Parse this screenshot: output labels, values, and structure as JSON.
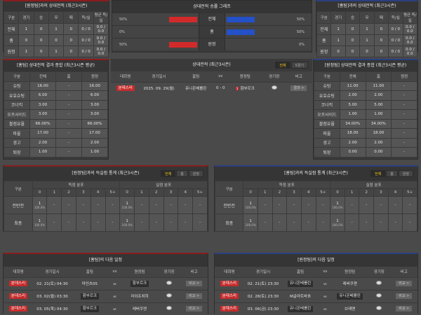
{
  "colors": {
    "home_accent": "#8a1d1d",
    "away_accent": "#2a3f80",
    "left_bar": "#d22a2a",
    "right_bar": "#2450c8",
    "tab_active": "#f2c521",
    "league_badge": "#c62b2b"
  },
  "h2h_left": {
    "title": "[원정팀]과의 상대전적 (최근3시즌)",
    "headers": [
      "구분",
      "경기",
      "승",
      "무",
      "패",
      "득/실",
      "평균 득/실"
    ],
    "rows": [
      [
        "전체",
        "1",
        "0",
        "1",
        "0",
        "0 / 0",
        "0.0 / 0.0"
      ],
      [
        "홈",
        "0",
        "0",
        "0",
        "0",
        "0 / 0",
        "0.0 / 0.0"
      ],
      [
        "원정",
        "1",
        "0",
        "1",
        "0",
        "0 / 0",
        "0.0 / 0.0"
      ]
    ]
  },
  "h2h_right": {
    "title": "[홈팀]과의 상대전적 (최근3시즌)",
    "headers": [
      "구분",
      "경기",
      "승",
      "무",
      "패",
      "득/실",
      "평균 득/실"
    ],
    "rows": [
      [
        "전체",
        "1",
        "0",
        "1",
        "0",
        "0 / 0",
        "0.0 / 0.0"
      ],
      [
        "홈",
        "1",
        "0",
        "1",
        "0",
        "0 / 0",
        "0.0 / 0.0"
      ],
      [
        "원정",
        "0",
        "0",
        "0",
        "0",
        "0 / 0",
        "0.0 / 0.0"
      ]
    ]
  },
  "graph": {
    "title": "상대전적 승률 그래프",
    "rows": [
      {
        "label": "전체",
        "left": 50,
        "right": 50,
        "left_text": "50%",
        "right_text": "50%"
      },
      {
        "label": "홈",
        "left": 0,
        "right": 50,
        "left_text": "0%",
        "right_text": "50%"
      },
      {
        "label": "원정",
        "left": 50,
        "right": 0,
        "left_text": "50%",
        "right_text": "0%"
      }
    ]
  },
  "summary_left": {
    "title": "[홈팀] 상대전적 결과 종합 (최근3시즌 평균)",
    "headers": [
      "구분",
      "전체",
      "홈",
      "원정"
    ],
    "rows": [
      [
        "슈팅",
        "16.00",
        "-",
        "16.00"
      ],
      [
        "유효슈팅",
        "6.00",
        "-",
        "6.00"
      ],
      [
        "코너킥",
        "3.00",
        "-",
        "3.00"
      ],
      [
        "오프사이드",
        "3.00",
        "-",
        "3.00"
      ],
      [
        "볼점유율",
        "66.00%",
        "-",
        "66.00%"
      ],
      [
        "파울",
        "17.00",
        "-",
        "17.00"
      ],
      [
        "경고",
        "2.00",
        "-",
        "2.00"
      ],
      [
        "퇴장",
        "1.00",
        "-",
        "1.00"
      ]
    ]
  },
  "summary_right": {
    "title": "[원정팀] 상대전적 결과 종합 (최근3시즌 평균)",
    "headers": [
      "구분",
      "전체",
      "홈",
      "원정"
    ],
    "rows": [
      [
        "슈팅",
        "11.00",
        "11.00",
        "-"
      ],
      [
        "유효슈팅",
        "2.00",
        "2.00",
        "-"
      ],
      [
        "코너킥",
        "5.00",
        "5.00",
        "-"
      ],
      [
        "오프사이드",
        "1.00",
        "1.00",
        "-"
      ],
      [
        "볼점유율",
        "34.00%",
        "34.00%",
        "-"
      ],
      [
        "파울",
        "18.00",
        "18.00",
        "-"
      ],
      [
        "경고",
        "2.00",
        "2.00",
        "-"
      ],
      [
        "퇴장",
        "0.00",
        "0.00",
        "-"
      ]
    ]
  },
  "recent": {
    "title": "상대전적 (최근3시즌)",
    "tabs": [
      "전체",
      "5경기"
    ],
    "headers": [
      "대회명",
      "경기일시",
      "홈팀",
      "vs",
      "원정팀",
      "경기장",
      "비고"
    ],
    "matches": [
      {
        "league": "분데스리",
        "date": "2025. 09. 29(월)",
        "home": "유니온베를린",
        "score": "0 - 0",
        "red_card": "1",
        "away": "함부르크",
        "note": "결과 >"
      }
    ]
  },
  "goals_left": {
    "title": "[원정팀]과의 득실점 통계 (최근3시즌)",
    "tabs": [
      "전체",
      "홈",
      "원정"
    ],
    "col_label": "구분",
    "groups": [
      "득점 분포",
      "실점 분포"
    ],
    "buckets": [
      "0",
      "1",
      "2",
      "3",
      "4",
      "5+"
    ],
    "rows": [
      {
        "label": "전반전",
        "scored": [
          [
            "1",
            "100.0%"
          ],
          [
            "-"
          ],
          [
            "-"
          ],
          [
            "-"
          ],
          [
            "-"
          ],
          [
            "-"
          ]
        ],
        "conceded": [
          [
            "1",
            "100.0%"
          ],
          [
            "-"
          ],
          [
            "-"
          ],
          [
            "-"
          ],
          [
            "-"
          ],
          [
            "-"
          ]
        ]
      },
      {
        "label": "최종",
        "scored": [
          [
            "1",
            "100.0%"
          ],
          [
            "-"
          ],
          [
            "-"
          ],
          [
            "-"
          ],
          [
            "-"
          ],
          [
            "-"
          ]
        ],
        "conceded": [
          [
            "1",
            "100.0%"
          ],
          [
            "-"
          ],
          [
            "-"
          ],
          [
            "-"
          ],
          [
            "-"
          ],
          [
            "-"
          ]
        ]
      }
    ]
  },
  "goals_right": {
    "title": "[홈팀]과의 득실점 통계 (최근3시즌)",
    "tabs": [
      "전체",
      "홈",
      "원정"
    ],
    "col_label": "구분",
    "groups": [
      "득점 분포",
      "실점 분포"
    ],
    "buckets": [
      "0",
      "1",
      "2",
      "3",
      "4",
      "5+"
    ],
    "rows": [
      {
        "label": "전반전",
        "scored": [
          [
            "1",
            "100.0%"
          ],
          [
            "-"
          ],
          [
            "-"
          ],
          [
            "-"
          ],
          [
            "-"
          ],
          [
            "-"
          ]
        ],
        "conceded": [
          [
            "1",
            "100.0%"
          ],
          [
            "-"
          ],
          [
            "-"
          ],
          [
            "-"
          ],
          [
            "-"
          ],
          [
            "-"
          ]
        ]
      },
      {
        "label": "최종",
        "scored": [
          [
            "1",
            "100.0%"
          ],
          [
            "-"
          ],
          [
            "-"
          ],
          [
            "-"
          ],
          [
            "-"
          ],
          [
            "-"
          ]
        ],
        "conceded": [
          [
            "1",
            "100.0%"
          ],
          [
            "-"
          ],
          [
            "-"
          ],
          [
            "-"
          ],
          [
            "-"
          ],
          [
            "-"
          ]
        ]
      }
    ]
  },
  "next_left": {
    "title": "[홈팀]의 다음 일정",
    "headers": [
      "대회명",
      "경기일시",
      "홈팀",
      "vs",
      "원정팀",
      "경기장",
      "비고"
    ],
    "matches": [
      {
        "league": "분데스리",
        "date": "02. 21(토) 04:30",
        "home": "마인츠05",
        "away": "함부르크",
        "hl": "away",
        "note": "비교 >"
      },
      {
        "league": "분데스리",
        "date": "03. 02(월) 03:30",
        "home": "함부르크",
        "away": "라이프치히",
        "hl": "home",
        "note": "비교 >"
      },
      {
        "league": "분데스리",
        "date": "03. 05(목) 04:30",
        "home": "함부르크",
        "away": "레버쿠젠",
        "hl": "home",
        "note": "비교 >"
      }
    ]
  },
  "next_right": {
    "title": "[원정팀]의 다음 일정",
    "headers": [
      "대회명",
      "경기일시",
      "홈팀",
      "vs",
      "원정팀",
      "경기장",
      "비고"
    ],
    "matches": [
      {
        "league": "분데스리",
        "date": "02. 21(토) 23:30",
        "home": "유니온베를린",
        "away": "레버쿠젠",
        "hl": "home",
        "note": "비교 >"
      },
      {
        "league": "분데스리",
        "date": "02. 28(토) 23:30",
        "home": "M글라트바흐",
        "away": "유니온베를린",
        "hl": "away",
        "note": "비교 >"
      },
      {
        "league": "분데스리",
        "date": "03. 06(금) 23:30",
        "home": "유니온베를린",
        "away": "브레멘",
        "hl": "home",
        "note": "비교 >"
      }
    ]
  }
}
